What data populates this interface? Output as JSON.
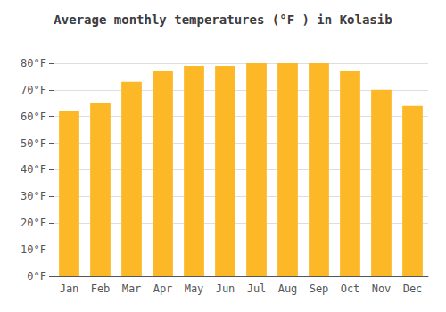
{
  "chart_data": {
    "type": "bar",
    "title": "Average monthly temperatures (°F ) in Kolasib",
    "categories": [
      "Jan",
      "Feb",
      "Mar",
      "Apr",
      "May",
      "Jun",
      "Jul",
      "Aug",
      "Sep",
      "Oct",
      "Nov",
      "Dec"
    ],
    "values": [
      62,
      65,
      73,
      77,
      79,
      79,
      80,
      80,
      80,
      77,
      70,
      64
    ],
    "color": "#FDB827",
    "ylim": [
      0,
      87
    ],
    "yticks": [
      {
        "value": 0,
        "label": "0°F"
      },
      {
        "value": 10,
        "label": "10°F"
      },
      {
        "value": 20,
        "label": "20°F"
      },
      {
        "value": 30,
        "label": "30°F"
      },
      {
        "value": 40,
        "label": "40°F"
      },
      {
        "value": 50,
        "label": "50°F"
      },
      {
        "value": 60,
        "label": "60°F"
      },
      {
        "value": 70,
        "label": "70°F"
      },
      {
        "value": 80,
        "label": "80°F"
      }
    ],
    "grid": true
  }
}
